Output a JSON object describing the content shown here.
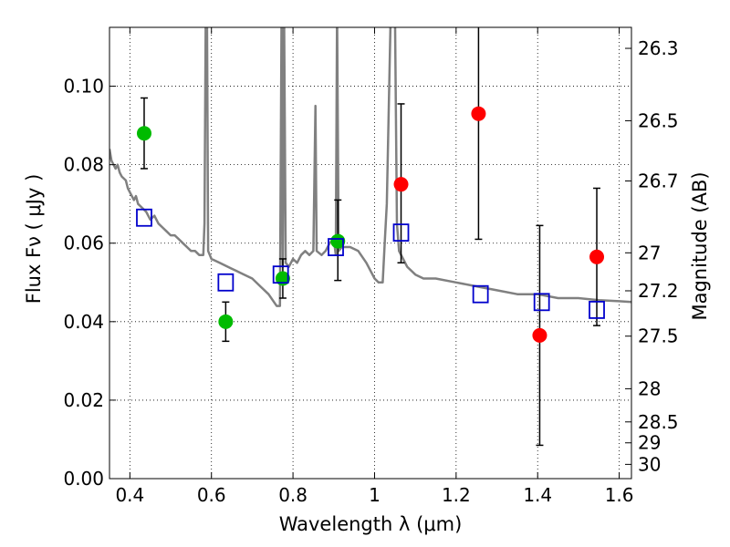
{
  "chart_data": {
    "type": "scatter",
    "xlabel": "Wavelength  λ (μm)",
    "ylabel": "Flux  Fν  ( μJy )",
    "ylabel_right": "Magnitude (AB)",
    "xlim": [
      0.35,
      1.63
    ],
    "ylim": [
      0.0,
      0.115
    ],
    "grid": true,
    "x_ticks": [
      {
        "value": 0.4,
        "label": "0.4"
      },
      {
        "value": 0.6,
        "label": "0.6"
      },
      {
        "value": 0.8,
        "label": "0.8"
      },
      {
        "value": 1.0,
        "label": "1"
      },
      {
        "value": 1.2,
        "label": "1.2"
      },
      {
        "value": 1.4,
        "label": "1.4"
      },
      {
        "value": 1.6,
        "label": "1.6"
      }
    ],
    "y_ticks": [
      {
        "value": 0.0,
        "label": "0.00"
      },
      {
        "value": 0.02,
        "label": "0.02"
      },
      {
        "value": 0.04,
        "label": "0.04"
      },
      {
        "value": 0.06,
        "label": "0.06"
      },
      {
        "value": 0.08,
        "label": "0.08"
      },
      {
        "value": 0.1,
        "label": "0.10"
      }
    ],
    "right_ticks": [
      {
        "value": 26.3,
        "label": "26.3"
      },
      {
        "value": 26.5,
        "label": "26.5"
      },
      {
        "value": 26.7,
        "label": "26.7"
      },
      {
        "value": 27.0,
        "label": "27"
      },
      {
        "value": 27.2,
        "label": "27.2"
      },
      {
        "value": 27.5,
        "label": "27.5"
      },
      {
        "value": 28.0,
        "label": "28"
      },
      {
        "value": 28.5,
        "label": "28.5"
      },
      {
        "value": 29.0,
        "label": "29"
      },
      {
        "value": 30.0,
        "label": "30"
      }
    ],
    "colors": {
      "model": "#808080",
      "green": "#00bb00",
      "red": "#ff0000",
      "squares": "#0000cc",
      "errorbars": "#000000",
      "grid": "#000000"
    },
    "series": [
      {
        "kind": "line",
        "points": [
          [
            0.35,
            0.084
          ],
          [
            0.355,
            0.081
          ],
          [
            0.36,
            0.08
          ],
          [
            0.365,
            0.079
          ],
          [
            0.37,
            0.08
          ],
          [
            0.375,
            0.078
          ],
          [
            0.38,
            0.077
          ],
          [
            0.39,
            0.076
          ],
          [
            0.395,
            0.074
          ],
          [
            0.4,
            0.073
          ],
          [
            0.41,
            0.071
          ],
          [
            0.415,
            0.072
          ],
          [
            0.42,
            0.07
          ],
          [
            0.43,
            0.069
          ],
          [
            0.44,
            0.068
          ],
          [
            0.45,
            0.066
          ],
          [
            0.46,
            0.067
          ],
          [
            0.47,
            0.065
          ],
          [
            0.48,
            0.064
          ],
          [
            0.49,
            0.063
          ],
          [
            0.5,
            0.062
          ],
          [
            0.51,
            0.062
          ],
          [
            0.52,
            0.061
          ],
          [
            0.53,
            0.06
          ],
          [
            0.54,
            0.059
          ],
          [
            0.55,
            0.058
          ],
          [
            0.56,
            0.058
          ],
          [
            0.57,
            0.057
          ],
          [
            0.58,
            0.057
          ],
          [
            0.583,
            0.065
          ],
          [
            0.586,
            0.12
          ],
          [
            0.589,
            0.12
          ],
          [
            0.592,
            0.058
          ],
          [
            0.6,
            0.056
          ],
          [
            0.62,
            0.055
          ],
          [
            0.64,
            0.054
          ],
          [
            0.66,
            0.053
          ],
          [
            0.68,
            0.052
          ],
          [
            0.7,
            0.051
          ],
          [
            0.72,
            0.049
          ],
          [
            0.74,
            0.047
          ],
          [
            0.76,
            0.044
          ],
          [
            0.768,
            0.044
          ],
          [
            0.772,
            0.12
          ],
          [
            0.775,
            0.054
          ],
          [
            0.778,
            0.12
          ],
          [
            0.782,
            0.055
          ],
          [
            0.79,
            0.054
          ],
          [
            0.8,
            0.056
          ],
          [
            0.81,
            0.055
          ],
          [
            0.82,
            0.057
          ],
          [
            0.83,
            0.058
          ],
          [
            0.84,
            0.057
          ],
          [
            0.85,
            0.058
          ],
          [
            0.855,
            0.095
          ],
          [
            0.858,
            0.058
          ],
          [
            0.87,
            0.057
          ],
          [
            0.88,
            0.058
          ],
          [
            0.89,
            0.06
          ],
          [
            0.9,
            0.061
          ],
          [
            0.905,
            0.057
          ],
          [
            0.908,
            0.12
          ],
          [
            0.912,
            0.058
          ],
          [
            0.92,
            0.059
          ],
          [
            0.94,
            0.059
          ],
          [
            0.96,
            0.058
          ],
          [
            0.98,
            0.055
          ],
          [
            1.0,
            0.051
          ],
          [
            1.01,
            0.05
          ],
          [
            1.02,
            0.05
          ],
          [
            1.025,
            0.06
          ],
          [
            1.03,
            0.07
          ],
          [
            1.04,
            0.12
          ],
          [
            1.05,
            0.12
          ],
          [
            1.055,
            0.065
          ],
          [
            1.06,
            0.058
          ],
          [
            1.07,
            0.056
          ],
          [
            1.08,
            0.054
          ],
          [
            1.1,
            0.052
          ],
          [
            1.12,
            0.051
          ],
          [
            1.15,
            0.051
          ],
          [
            1.2,
            0.05
          ],
          [
            1.25,
            0.049
          ],
          [
            1.3,
            0.048
          ],
          [
            1.35,
            0.047
          ],
          [
            1.4,
            0.047
          ],
          [
            1.45,
            0.046
          ],
          [
            1.5,
            0.046
          ],
          [
            1.55,
            0.0455
          ],
          [
            1.6,
            0.0452
          ],
          [
            1.63,
            0.045
          ]
        ]
      },
      {
        "kind": "errorbar",
        "points": [
          {
            "x": 0.435,
            "y": 0.088,
            "ylo": 0.079,
            "yhi": 0.097
          },
          {
            "x": 0.635,
            "y": 0.04,
            "ylo": 0.035,
            "yhi": 0.045
          },
          {
            "x": 0.775,
            "y": 0.051,
            "ylo": 0.046,
            "yhi": 0.056
          },
          {
            "x": 0.91,
            "y": 0.0605,
            "ylo": 0.0505,
            "yhi": 0.071
          },
          {
            "x": 1.065,
            "y": 0.075,
            "ylo": 0.055,
            "yhi": 0.0955
          },
          {
            "x": 1.255,
            "y": 0.093,
            "ylo": 0.061,
            "yhi": 0.12
          },
          {
            "x": 1.405,
            "y": 0.0365,
            "ylo": 0.0085,
            "yhi": 0.0645
          },
          {
            "x": 1.545,
            "y": 0.0565,
            "ylo": 0.039,
            "yhi": 0.074
          }
        ]
      },
      {
        "kind": "scatter-green",
        "points": [
          [
            0.435,
            0.088
          ],
          [
            0.635,
            0.04
          ],
          [
            0.775,
            0.051
          ],
          [
            0.91,
            0.0605
          ]
        ]
      },
      {
        "kind": "scatter-red",
        "points": [
          [
            1.065,
            0.075
          ],
          [
            1.255,
            0.093
          ],
          [
            1.405,
            0.0365
          ],
          [
            1.545,
            0.0565
          ]
        ]
      },
      {
        "kind": "open-squares",
        "points": [
          [
            0.435,
            0.0665
          ],
          [
            0.635,
            0.05
          ],
          [
            0.77,
            0.052
          ],
          [
            0.905,
            0.059
          ],
          [
            1.065,
            0.0627
          ],
          [
            1.26,
            0.047
          ],
          [
            1.41,
            0.045
          ],
          [
            1.545,
            0.043
          ]
        ]
      }
    ]
  }
}
